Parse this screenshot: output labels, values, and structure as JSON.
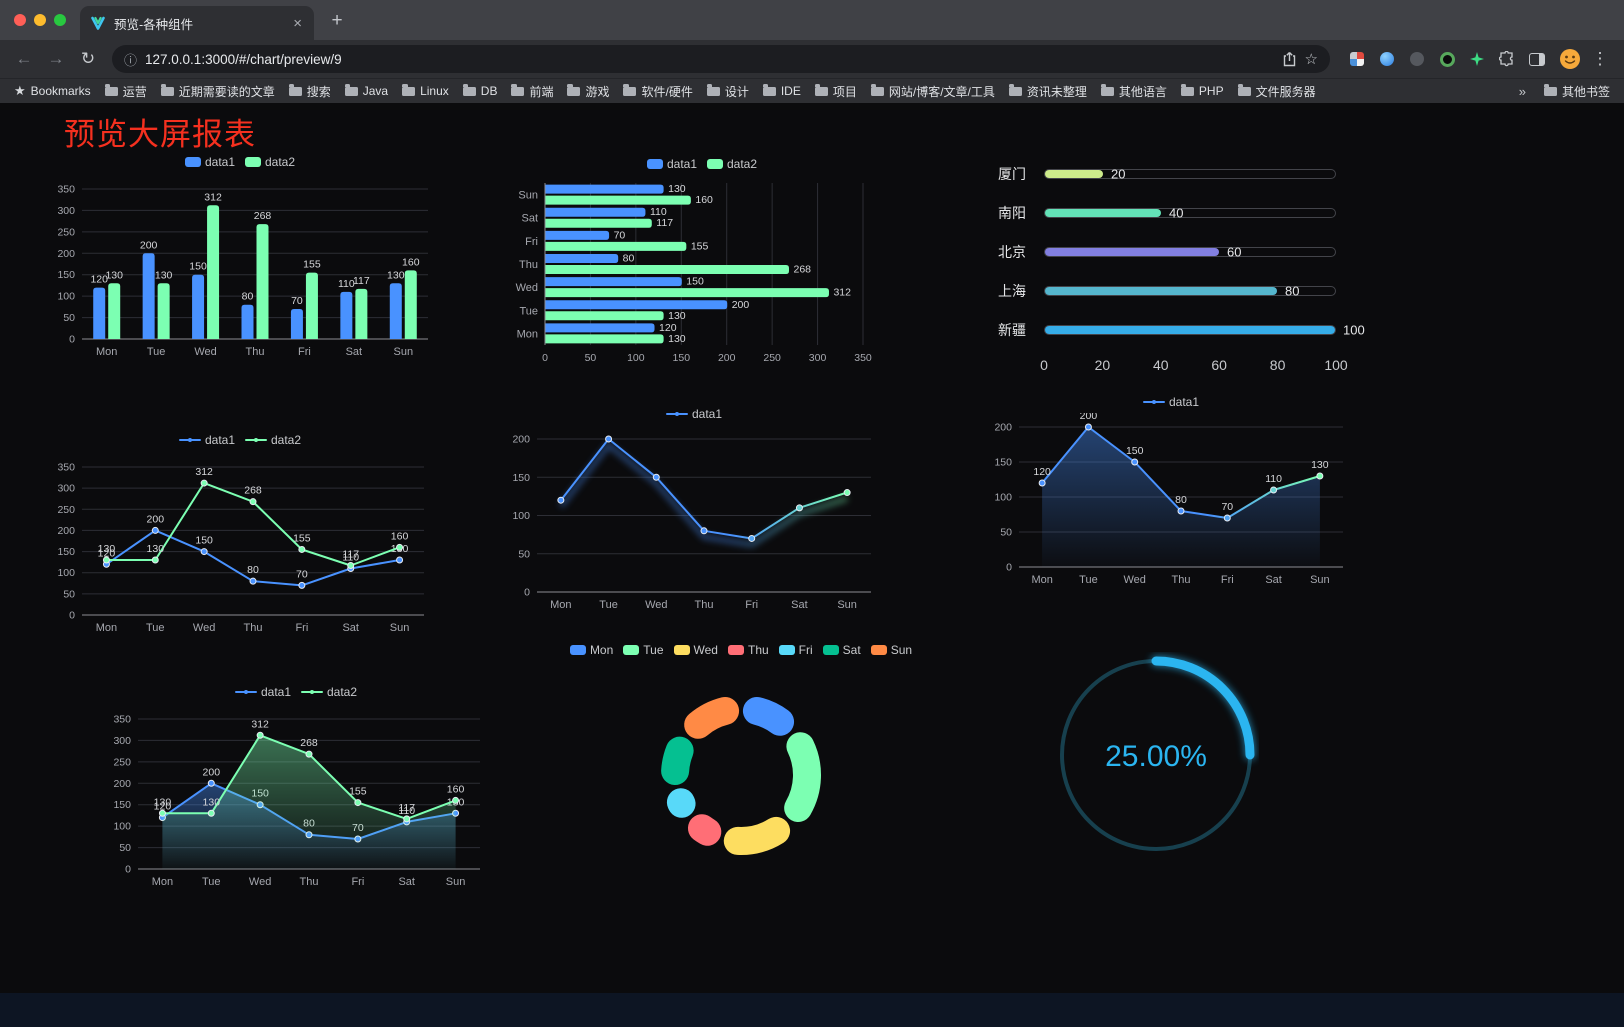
{
  "browser": {
    "tab": {
      "title": "预览-各种组件"
    },
    "url": "127.0.0.1:3000/#/chart/preview/9",
    "icons": {
      "back": "←",
      "forward": "→",
      "reload": "↻",
      "info": "ⓘ",
      "close": "×",
      "new_tab": "+",
      "menu": "⋮",
      "star": "☆",
      "bookmarks_star": "★"
    },
    "bookmarks_bar": {
      "label": "Bookmarks",
      "items": [
        "运营",
        "近期需要读的文章",
        "搜索",
        "Java",
        "Linux",
        "DB",
        "前端",
        "游戏",
        "软件/硬件",
        "设计",
        "IDE",
        "项目",
        "网站/博客/文章/工具",
        "资讯未整理",
        "其他语言",
        "PHP",
        "文件服务器"
      ],
      "overflow": "»",
      "other": "其他书签"
    }
  },
  "page": {
    "title": "预览大屏报表",
    "title_color": "#f5301f",
    "background": "#0b0b0d"
  },
  "chart_data": [
    {
      "id": "bar-vertical",
      "type": "bar",
      "categories": [
        "Mon",
        "Tue",
        "Wed",
        "Thu",
        "Fri",
        "Sat",
        "Sun"
      ],
      "series": [
        {
          "name": "data1",
          "color": "#4992ff",
          "values": [
            120,
            200,
            150,
            80,
            70,
            110,
            130
          ]
        },
        {
          "name": "data2",
          "color": "#7cffb2",
          "values": [
            130,
            130,
            312,
            268,
            155,
            117,
            160
          ]
        }
      ],
      "ylim": [
        0,
        350
      ],
      "yticks": [
        0,
        50,
        100,
        150,
        200,
        250,
        300,
        350
      ],
      "legend_position": "top",
      "grid": true
    },
    {
      "id": "bar-horizontal",
      "type": "hbar",
      "categories_top_to_bottom": [
        "Sun",
        "Sat",
        "Fri",
        "Thu",
        "Wed",
        "Tue",
        "Mon"
      ],
      "series": [
        {
          "name": "data1",
          "color": "#4992ff",
          "values": [
            130,
            110,
            70,
            80,
            150,
            200,
            120
          ]
        },
        {
          "name": "data2",
          "color": "#7cffb2",
          "values": [
            160,
            117,
            155,
            268,
            312,
            130,
            130
          ]
        }
      ],
      "xlim": [
        0,
        350
      ],
      "xticks": [
        0,
        50,
        100,
        150,
        200,
        250,
        300,
        350
      ],
      "legend_position": "top",
      "grid": true
    },
    {
      "id": "progress-bars",
      "type": "progress",
      "rows": [
        {
          "label": "厦门",
          "value": 20,
          "color": "#cdeb8b"
        },
        {
          "label": "南阳",
          "value": 40,
          "color": "#63e2b7"
        },
        {
          "label": "北京",
          "value": 60,
          "color": "#827fe0"
        },
        {
          "label": "上海",
          "value": 80,
          "color": "#55b6cd"
        },
        {
          "label": "新疆",
          "value": 100,
          "color": "#36ade8"
        }
      ],
      "xticks": [
        0,
        20,
        40,
        60,
        80,
        100
      ]
    },
    {
      "id": "line-basic",
      "type": "line",
      "labels": true,
      "categories": [
        "Mon",
        "Tue",
        "Wed",
        "Thu",
        "Fri",
        "Sat",
        "Sun"
      ],
      "series": [
        {
          "name": "data1",
          "color": "#4992ff",
          "values": [
            120,
            200,
            150,
            80,
            70,
            110,
            130
          ]
        },
        {
          "name": "data2",
          "color": "#7cffb2",
          "values": [
            130,
            130,
            312,
            268,
            155,
            117,
            160
          ]
        }
      ],
      "ylim": [
        0,
        350
      ],
      "yticks": [
        0,
        50,
        100,
        150,
        200,
        250,
        300,
        350
      ],
      "legend_position": "top",
      "grid": true
    },
    {
      "id": "line-gradient",
      "type": "line",
      "labels": false,
      "categories": [
        "Mon",
        "Tue",
        "Wed",
        "Thu",
        "Fri",
        "Sat",
        "Sun"
      ],
      "series": [
        {
          "name": "data1",
          "color": "#4992ff",
          "gradient": [
            "#4992ff",
            "#7cffb2"
          ],
          "glow": true,
          "values": [
            120,
            200,
            150,
            80,
            70,
            110,
            130
          ]
        }
      ],
      "ylim": [
        0,
        200
      ],
      "yticks": [
        0,
        50,
        100,
        150,
        200
      ],
      "legend_position": "top",
      "grid": true
    },
    {
      "id": "line-area-single",
      "type": "line",
      "labels": true,
      "categories": [
        "Mon",
        "Tue",
        "Wed",
        "Thu",
        "Fri",
        "Sat",
        "Sun"
      ],
      "series": [
        {
          "name": "data1",
          "color": "#4992ff",
          "gradient": [
            "#4992ff",
            "#7cffb2"
          ],
          "area": true,
          "values": [
            120,
            200,
            150,
            80,
            70,
            110,
            130
          ]
        }
      ],
      "ylim": [
        0,
        200
      ],
      "yticks": [
        0,
        50,
        100,
        150,
        200
      ],
      "legend_position": "top",
      "grid": true
    },
    {
      "id": "line-area-double",
      "type": "line",
      "labels": true,
      "categories": [
        "Mon",
        "Tue",
        "Wed",
        "Thu",
        "Fri",
        "Sat",
        "Sun"
      ],
      "series": [
        {
          "name": "data1",
          "color": "#4992ff",
          "area": true,
          "values": [
            120,
            200,
            150,
            80,
            70,
            110,
            130
          ]
        },
        {
          "name": "data2",
          "color": "#7cffb2",
          "area": true,
          "values": [
            130,
            130,
            312,
            268,
            155,
            117,
            160
          ]
        }
      ],
      "ylim": [
        0,
        350
      ],
      "yticks": [
        0,
        50,
        100,
        150,
        200,
        250,
        300,
        350
      ],
      "legend_position": "top",
      "grid": true
    },
    {
      "id": "pie-donut",
      "type": "donut",
      "legend_position": "top",
      "items": [
        {
          "name": "Mon",
          "value": 120,
          "color": "#4992ff"
        },
        {
          "name": "Tue",
          "value": 200,
          "color": "#7cffb2"
        },
        {
          "name": "Wed",
          "value": 150,
          "color": "#fddd60"
        },
        {
          "name": "Thu",
          "value": 80,
          "color": "#ff6e76"
        },
        {
          "name": "Fri",
          "value": 70,
          "color": "#58d9f9"
        },
        {
          "name": "Sat",
          "value": 110,
          "color": "#05c091"
        },
        {
          "name": "Sun",
          "value": 130,
          "color": "#ff8a45"
        }
      ]
    },
    {
      "id": "gauge",
      "type": "gauge",
      "value": 25,
      "label": "25.00%",
      "color": "#2bb5f0",
      "track_color": "#17404e"
    }
  ]
}
